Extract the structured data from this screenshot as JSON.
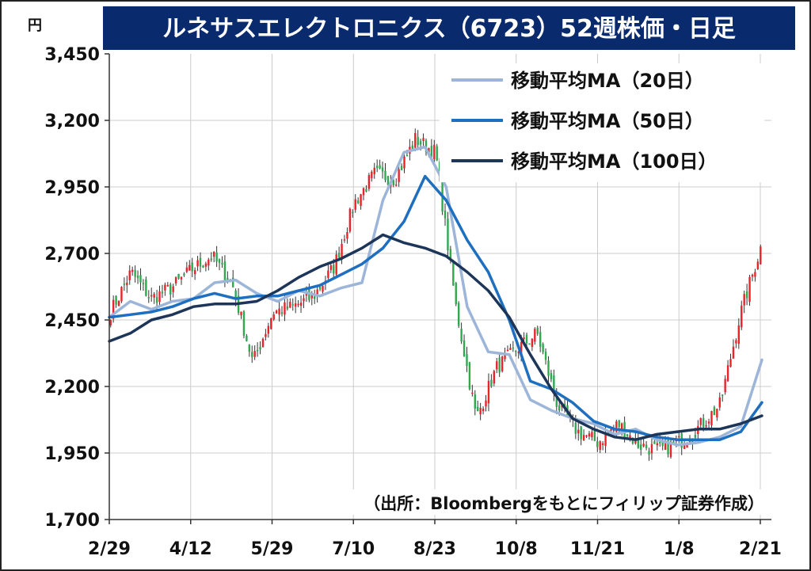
{
  "chart_data": {
    "type": "candlestick",
    "title": "ルネサスエレクトロニクス（6723）52週株価・日足",
    "unit_label": "円",
    "source_note": "（出所：Bloombergをもとにフィリップ証券作成）",
    "ylim": [
      1700,
      3450
    ],
    "yticks": [
      "3,450",
      "3,200",
      "2,950",
      "2,700",
      "2,450",
      "2,200",
      "1,950",
      "1,700"
    ],
    "ytick_values": [
      3450,
      3200,
      2950,
      2700,
      2450,
      2200,
      1950,
      1700
    ],
    "xticks": [
      "2/29",
      "4/12",
      "5/29",
      "7/10",
      "8/23",
      "10/8",
      "11/21",
      "1/8",
      "2/21"
    ],
    "grid": true,
    "legend_position": "top-right",
    "colors": {
      "up": "#e8242a",
      "down": "#2fa84f",
      "ma20": "#9cb5d8",
      "ma50": "#1e6fbf",
      "ma100": "#1c3558",
      "title_bg": "#0a2a6e",
      "grid": "#cccccc"
    },
    "moving_averages": [
      {
        "name": "移動平均MA（20日）",
        "values": [
          2460,
          2520,
          2490,
          2520,
          2530,
          2590,
          2600,
          2550,
          2520,
          2560,
          2540,
          2570,
          2590,
          2900,
          3080,
          3100,
          2950,
          2500,
          2330,
          2320,
          2150,
          2110,
          2080,
          2060,
          2020,
          2040,
          2000,
          1980,
          1990,
          2010,
          2050,
          2300
        ]
      },
      {
        "name": "移動平均MA（50日）",
        "values": [
          2460,
          2470,
          2480,
          2500,
          2530,
          2550,
          2530,
          2540,
          2540,
          2560,
          2580,
          2620,
          2660,
          2720,
          2820,
          2990,
          2900,
          2750,
          2630,
          2450,
          2220,
          2190,
          2140,
          2070,
          2040,
          2030,
          2010,
          2000,
          2000,
          2000,
          2030,
          2140
        ]
      },
      {
        "name": "移動平均MA（100日）",
        "values": [
          2370,
          2400,
          2450,
          2470,
          2500,
          2510,
          2510,
          2520,
          2560,
          2610,
          2650,
          2680,
          2720,
          2770,
          2740,
          2720,
          2690,
          2630,
          2560,
          2460,
          2320,
          2190,
          2080,
          2040,
          2010,
          2000,
          2020,
          2030,
          2040,
          2040,
          2060,
          2090
        ]
      }
    ],
    "close": [
      2480,
      2630,
      2530,
      2570,
      2640,
      2690,
      2580,
      2290,
      2480,
      2500,
      2540,
      2650,
      2890,
      3000,
      2980,
      3130,
      3080,
      2500,
      2080,
      2270,
      2340,
      2400,
      2130,
      2030,
      1990,
      2060,
      1980,
      1960,
      1990,
      2050,
      2130,
      2470,
      2720
    ]
  }
}
